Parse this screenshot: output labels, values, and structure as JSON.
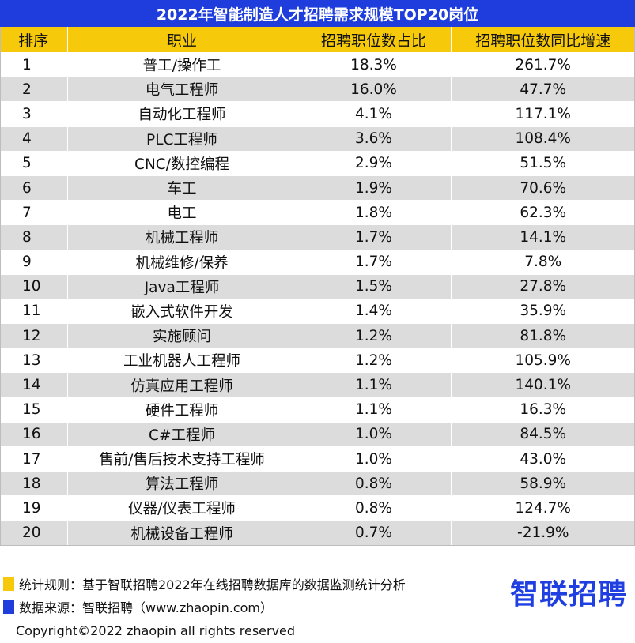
{
  "colors": {
    "title_bg": "#1e3ddc",
    "header_bg": "#f7c90b",
    "row_alt": "#dcdcdc",
    "note_yellow": "#f7c90b",
    "note_blue": "#1e3ddc",
    "logo": "#1f3fe0"
  },
  "chart_data": {
    "type": "table",
    "title": "2022年智能制造人才招聘需求规模TOP20岗位",
    "columns": [
      "排序",
      "职业",
      "招聘职位数占比",
      "招聘职位数同比增速"
    ],
    "rows": [
      [
        "1",
        "普工/操作工",
        "18.3%",
        "261.7%"
      ],
      [
        "2",
        "电气工程师",
        "16.0%",
        "47.7%"
      ],
      [
        "3",
        "自动化工程师",
        "4.1%",
        "117.1%"
      ],
      [
        "4",
        "PLC工程师",
        "3.6%",
        "108.4%"
      ],
      [
        "5",
        "CNC/数控编程",
        "2.9%",
        "51.5%"
      ],
      [
        "6",
        "车工",
        "1.9%",
        "70.6%"
      ],
      [
        "7",
        "电工",
        "1.8%",
        "62.3%"
      ],
      [
        "8",
        "机械工程师",
        "1.7%",
        "14.1%"
      ],
      [
        "9",
        "机械维修/保养",
        "1.7%",
        "7.8%"
      ],
      [
        "10",
        "Java工程师",
        "1.5%",
        "27.8%"
      ],
      [
        "11",
        "嵌入式软件开发",
        "1.4%",
        "35.9%"
      ],
      [
        "12",
        "实施顾问",
        "1.2%",
        "81.8%"
      ],
      [
        "13",
        "工业机器人工程师",
        "1.2%",
        "105.9%"
      ],
      [
        "14",
        "仿真应用工程师",
        "1.1%",
        "140.1%"
      ],
      [
        "15",
        "硬件工程师",
        "1.1%",
        "16.3%"
      ],
      [
        "16",
        "C#工程师",
        "1.0%",
        "84.5%"
      ],
      [
        "17",
        "售前/售后技术支持工程师",
        "1.0%",
        "43.0%"
      ],
      [
        "18",
        "算法工程师",
        "0.8%",
        "58.9%"
      ],
      [
        "19",
        "仪器/仪表工程师",
        "0.8%",
        "124.7%"
      ],
      [
        "20",
        "机械设备工程师",
        "0.7%",
        "-21.9%"
      ]
    ]
  },
  "footer": {
    "rule_note": "统计规则：基于智联招聘2022年在线招聘数据库的数据监测统计分析",
    "source_note": "数据来源：智联招聘（www.zhaopin.com）",
    "logo_text": "智联招聘",
    "copyright": "Copyright©2022 zhaopin all rights reserved"
  }
}
